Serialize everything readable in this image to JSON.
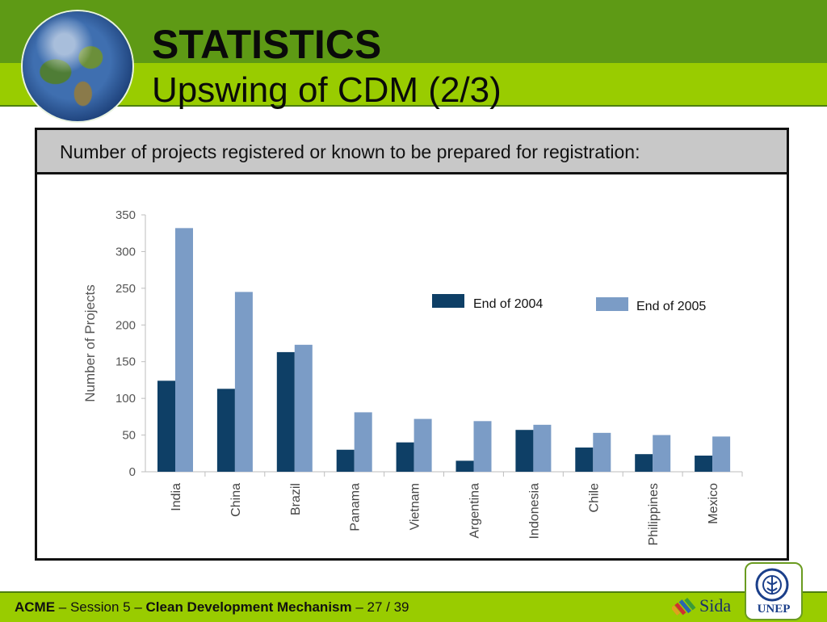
{
  "slide": {
    "title": "STATISTICS",
    "subtitle": "Upswing of CDM (2/3)",
    "box_header": "Number of projects registered or known to be prepared for registration:"
  },
  "footer": {
    "org": "ACME",
    "sep1": " – Session 5 – ",
    "topic": "Clean Development Mechanism",
    "sep2": " – ",
    "page": "27 / 39"
  },
  "logos": {
    "sida": "Sida",
    "unep": "UNEP"
  },
  "colors": {
    "band_dark": "#5e9a15",
    "band_light": "#99cc00",
    "series_2004": "#0e3f66",
    "series_2005": "#7b9cc6"
  },
  "chart_data": {
    "type": "bar",
    "categories": [
      "India",
      "China",
      "Brazil",
      "Panama",
      "Vietnam",
      "Argentina",
      "Indonesia",
      "Chile",
      "Philippines",
      "Mexico"
    ],
    "series": [
      {
        "name": "End of 2004",
        "values": [
          124,
          113,
          163,
          30,
          40,
          15,
          57,
          33,
          24,
          22
        ]
      },
      {
        "name": "End of 2005",
        "values": [
          332,
          245,
          173,
          81,
          72,
          69,
          64,
          53,
          50,
          48
        ]
      }
    ],
    "ylabel": "Number of Projects",
    "ylim": [
      0,
      350
    ],
    "yticks": [
      0,
      50,
      100,
      150,
      200,
      250,
      300,
      350
    ],
    "grid": false,
    "legend": "top-right"
  }
}
